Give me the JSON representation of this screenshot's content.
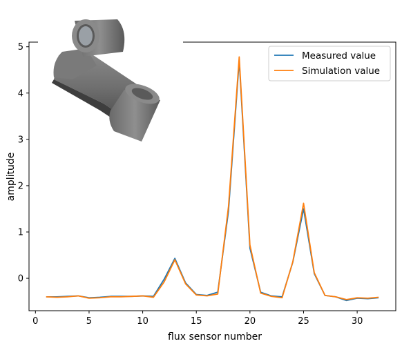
{
  "chart_data": {
    "type": "line",
    "xlabel": "flux sensor number",
    "ylabel": "amplitude",
    "xlim": [
      -0.6,
      33.6
    ],
    "ylim": [
      -0.7,
      5.1
    ],
    "xticks": [
      "0",
      "5",
      "10",
      "15",
      "20",
      "25",
      "30"
    ],
    "xtick_values": [
      0,
      5,
      10,
      15,
      20,
      25,
      30
    ],
    "yticks": [
      "0",
      "1",
      "2",
      "3",
      "4",
      "5"
    ],
    "ytick_values": [
      0,
      1,
      2,
      3,
      4,
      5
    ],
    "grid": false,
    "legend_position": "top-right",
    "x": [
      1,
      2,
      3,
      4,
      5,
      6,
      7,
      8,
      9,
      10,
      11,
      12,
      13,
      14,
      15,
      16,
      17,
      18,
      19,
      20,
      21,
      22,
      23,
      24,
      25,
      26,
      27,
      28,
      29,
      30,
      31,
      32
    ],
    "series": [
      {
        "name": "Measured value",
        "color": "#1f77b4",
        "values": [
          -0.4,
          -0.4,
          -0.39,
          -0.38,
          -0.42,
          -0.41,
          -0.39,
          -0.39,
          -0.39,
          -0.38,
          -0.39,
          -0.02,
          0.43,
          -0.1,
          -0.35,
          -0.37,
          -0.3,
          1.45,
          4.7,
          0.65,
          -0.3,
          -0.38,
          -0.4,
          0.35,
          1.5,
          0.1,
          -0.37,
          -0.4,
          -0.48,
          -0.43,
          -0.44,
          -0.42
        ]
      },
      {
        "name": "Simulation value",
        "color": "#ff7f0e",
        "values": [
          -0.4,
          -0.41,
          -0.4,
          -0.38,
          -0.43,
          -0.42,
          -0.4,
          -0.4,
          -0.39,
          -0.38,
          -0.41,
          -0.08,
          0.4,
          -0.12,
          -0.36,
          -0.38,
          -0.34,
          1.55,
          4.78,
          0.72,
          -0.32,
          -0.39,
          -0.42,
          0.36,
          1.62,
          0.12,
          -0.37,
          -0.4,
          -0.46,
          -0.42,
          -0.43,
          -0.41
        ]
      }
    ]
  },
  "inset": {
    "icon": "3d-pipe-part-image"
  }
}
